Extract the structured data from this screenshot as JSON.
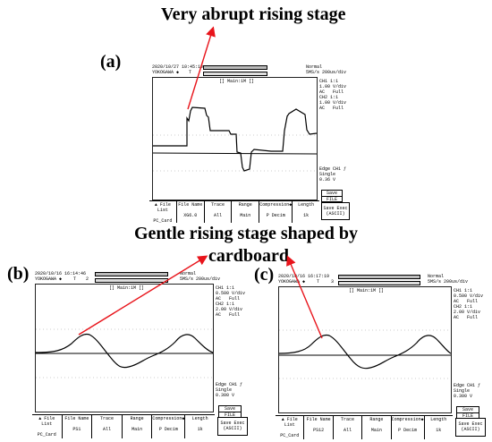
{
  "annotations": {
    "top_label": "Very abrupt rising stage",
    "middle_label_line1": "Gentle rising stage shaped by",
    "middle_label_line2": "cardboard"
  },
  "colors": {
    "arrow": "#e8141b"
  },
  "panels": [
    {
      "letter": "(a)",
      "timestamp": "2020/10/27 10:45:10",
      "brand": "YOKOGAWA ◆",
      "trig": "T",
      "trig_num": "",
      "mode": "Normal",
      "rate": "5MS/s 200us/div",
      "screen_title": "[] Main:1M []",
      "ch_info": "CH1 1:1\n1.00 V/div\nAC   Full\nCH2 1:1\n1.00 V/div\nAC   Full",
      "edge_info": "Edge CH1 ƒ\nSingle\n0.36 V",
      "save": "Save",
      "file": "FILE",
      "save_exec": "Save Exec\n(ASCII)",
      "buttons": [
        {
          "key": "▲ File List",
          "val": "PC_Card"
        },
        {
          "key": "File Name",
          "val": "XG6.0"
        },
        {
          "key": "Trace",
          "val": "All"
        },
        {
          "key": "Range",
          "val": "Main"
        },
        {
          "key": "Compression◆",
          "val": "P Decim"
        },
        {
          "key": "Length",
          "val": "1k"
        }
      ]
    },
    {
      "letter": "(b)",
      "timestamp": "2020/10/16 16:14:46",
      "brand": "YOKOGAWA ◆",
      "trig": "T",
      "trig_num": "2",
      "mode": "Normal",
      "rate": "5MS/s 200us/div",
      "screen_title": "[] Main:1M []",
      "ch_info": "CH1 1:1\n0.500 V/div\nAC   Full\nCH2 1:1\n2.00 V/div\nAC   Full",
      "edge_info": "Edge CH1 ƒ\nSingle\n0.300 V",
      "save": "Save",
      "file": "FILE",
      "save_exec": "Save Exec\n(ASCII)",
      "buttons": [
        {
          "key": "▲ File List",
          "val": "PC_Card"
        },
        {
          "key": "File Name",
          "val": "PS1"
        },
        {
          "key": "Trace",
          "val": "All"
        },
        {
          "key": "Range",
          "val": "Main"
        },
        {
          "key": "Compression◆",
          "val": "P Decim"
        },
        {
          "key": "Length",
          "val": "1k"
        }
      ]
    },
    {
      "letter": "(c)",
      "timestamp": "2020/10/16 16:17:19",
      "brand": "YOKOGAWA ◆",
      "trig": "T",
      "trig_num": "3",
      "mode": "Normal",
      "rate": "5MS/s 200us/div",
      "screen_title": "[] Main:1M []",
      "ch_info": "CH1 1:1\n0.500 V/div\nAC   Full\nCH2 1:1\n2.00 V/div\nAC   Full",
      "edge_info": "Edge CH1 ƒ\nSingle\n0.300 V",
      "save": "Save",
      "file": "FILE",
      "save_exec": "Save Exec\n(ASCII)",
      "buttons": [
        {
          "key": "▲ File List",
          "val": "PC_Card"
        },
        {
          "key": "File Name",
          "val": "PS12"
        },
        {
          "key": "Trace",
          "val": "All"
        },
        {
          "key": "Range",
          "val": "Main"
        },
        {
          "key": "Compression◆",
          "val": "P Decim"
        },
        {
          "key": "Length",
          "val": "1k"
        }
      ]
    }
  ]
}
